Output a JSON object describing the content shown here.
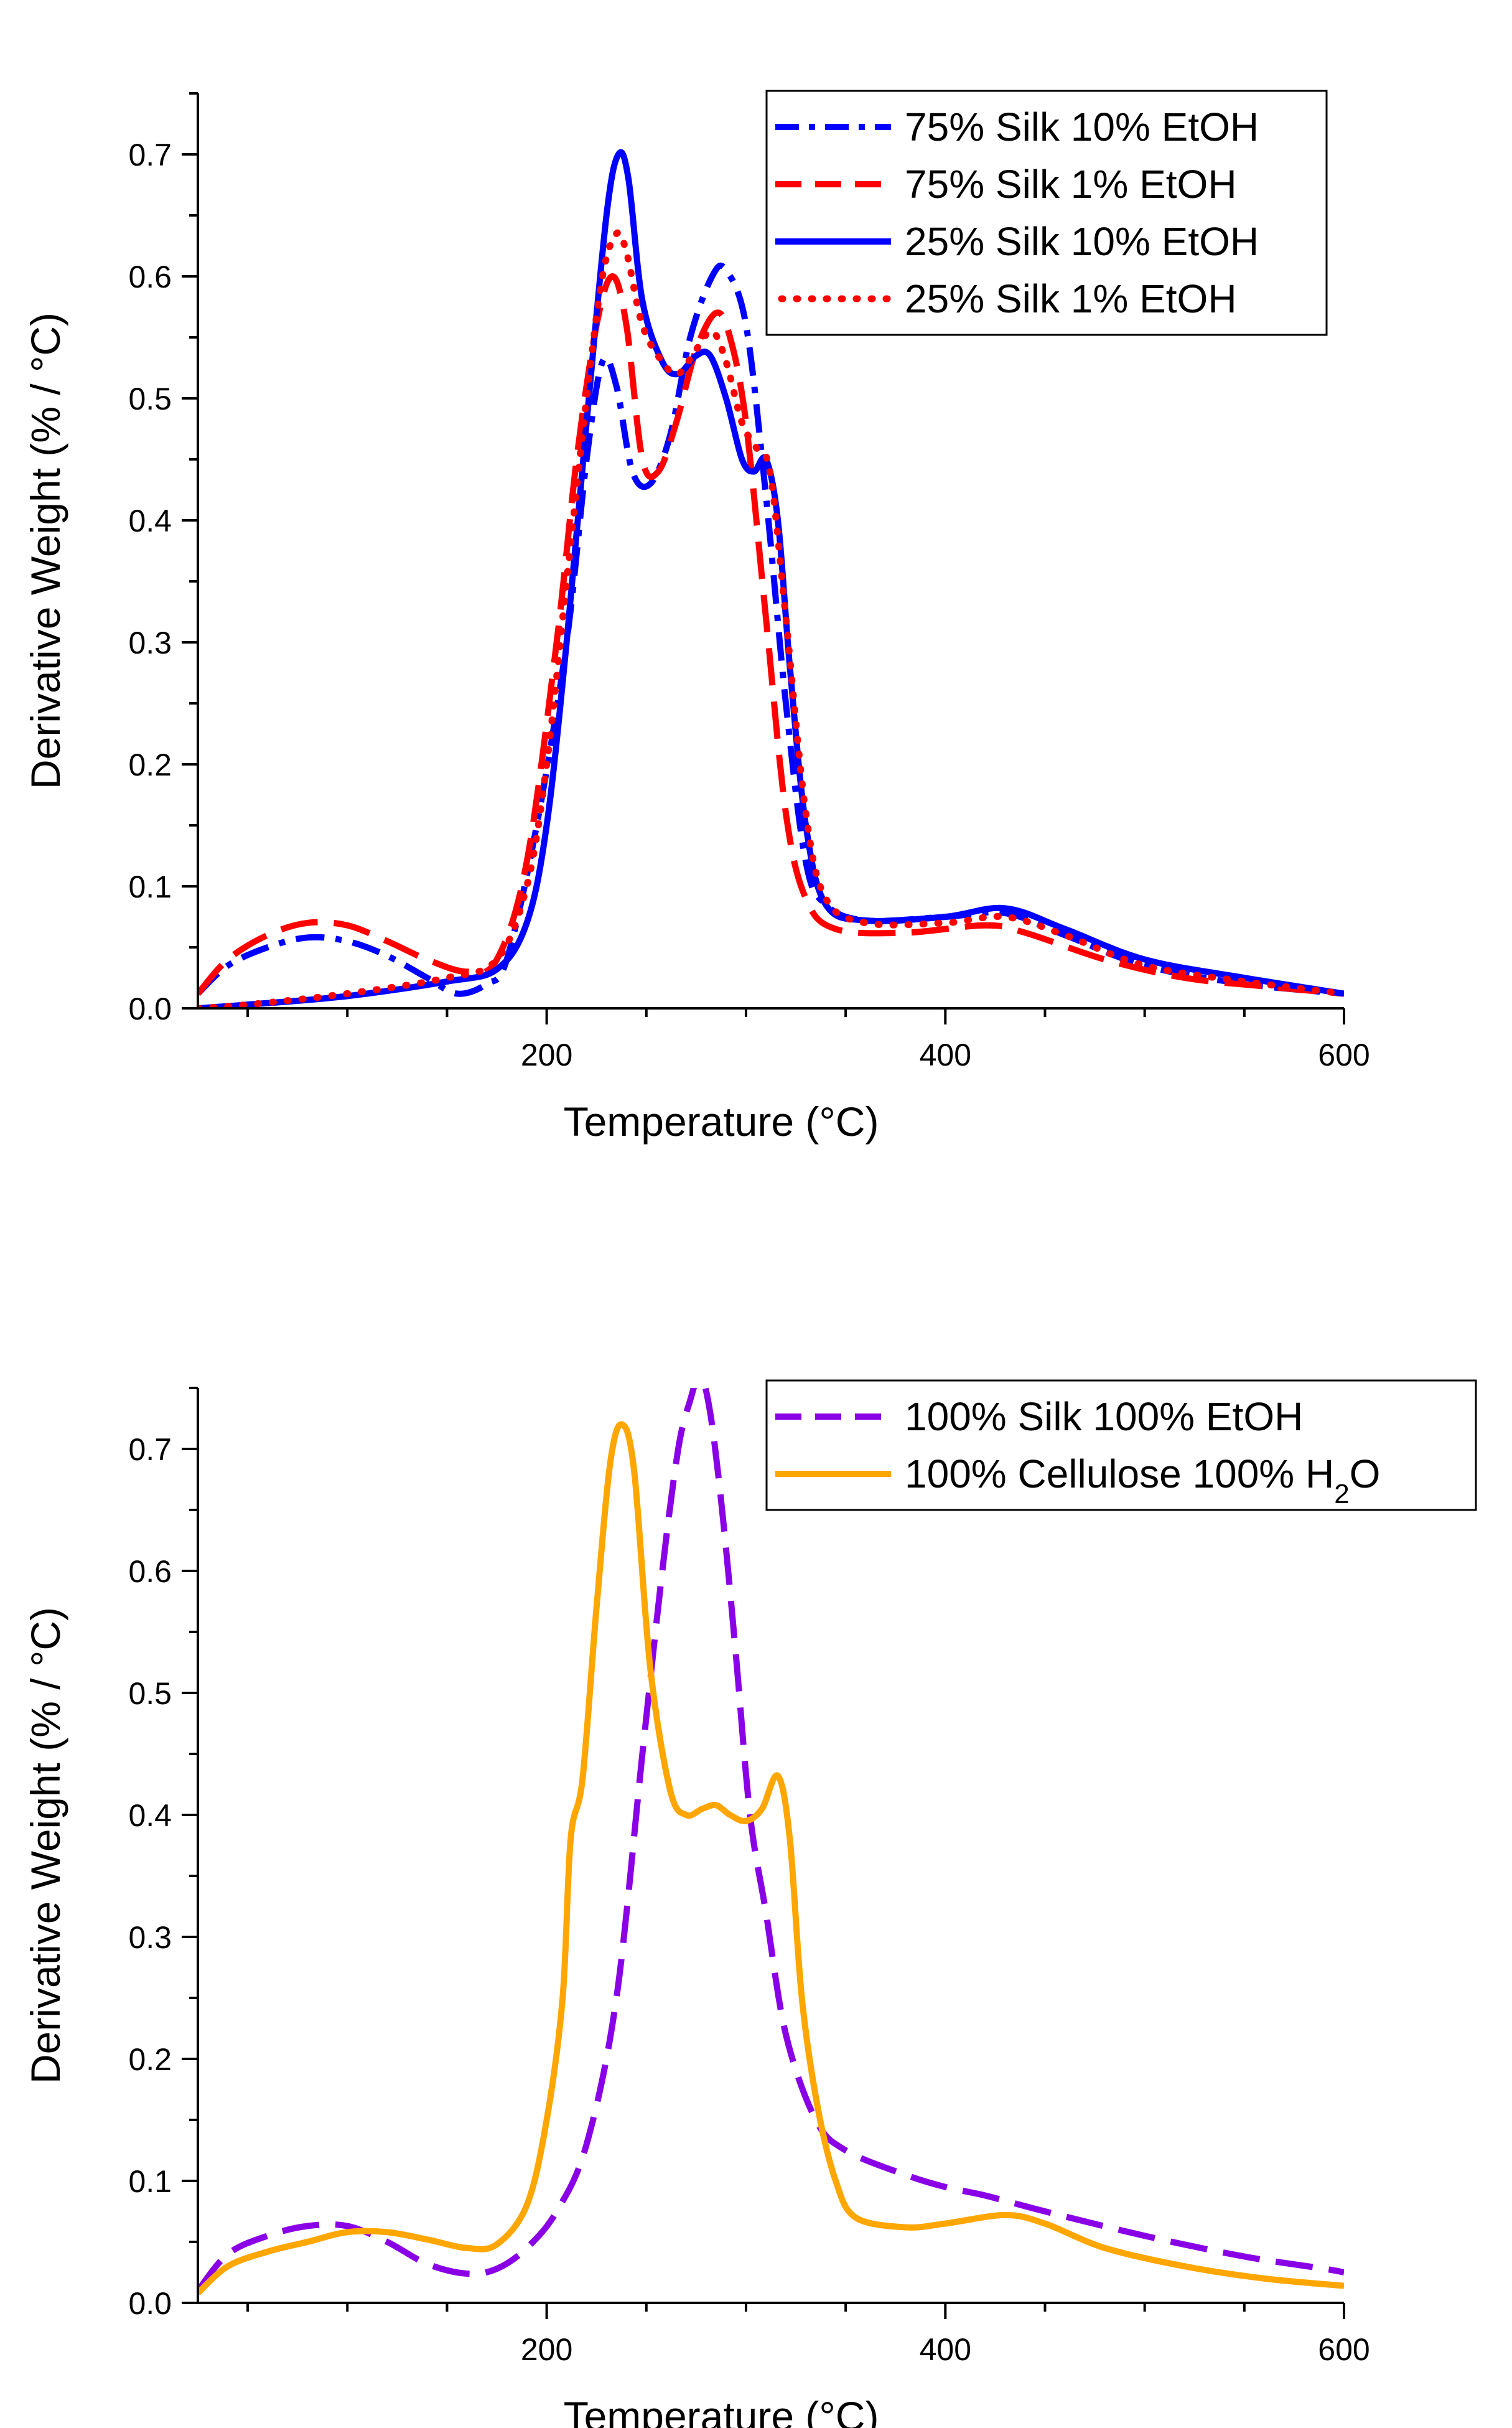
{
  "chart_data": [
    {
      "type": "line",
      "xlabel": "Temperature (°C)",
      "ylabel": "Derivative Weight (% / °C)",
      "xlim": [
        25,
        600
      ],
      "ylim": [
        0,
        0.75
      ],
      "xticks": [
        200,
        400,
        600
      ],
      "yticks": [
        0.0,
        0.1,
        0.2,
        0.3,
        0.4,
        0.5,
        0.6,
        0.7
      ],
      "legend_position": "top-right",
      "series": [
        {
          "name": "75% Silk 10% EtOH",
          "color": "#0000ff",
          "style": "dash-dot",
          "points": [
            [
              25,
              0.012
            ],
            [
              40,
              0.035
            ],
            [
              60,
              0.05
            ],
            [
              80,
              0.058
            ],
            [
              100,
              0.055
            ],
            [
              120,
              0.043
            ],
            [
              140,
              0.025
            ],
            [
              155,
              0.012
            ],
            [
              170,
              0.02
            ],
            [
              180,
              0.04
            ],
            [
              195,
              0.15
            ],
            [
              210,
              0.3
            ],
            [
              220,
              0.45
            ],
            [
              228,
              0.53
            ],
            [
              235,
              0.51
            ],
            [
              243,
              0.44
            ],
            [
              252,
              0.43
            ],
            [
              262,
              0.47
            ],
            [
              272,
              0.55
            ],
            [
              283,
              0.6
            ],
            [
              290,
              0.605
            ],
            [
              300,
              0.56
            ],
            [
              310,
              0.42
            ],
            [
              320,
              0.25
            ],
            [
              330,
              0.12
            ],
            [
              340,
              0.085
            ],
            [
              360,
              0.072
            ],
            [
              400,
              0.075
            ],
            [
              430,
              0.078
            ],
            [
              460,
              0.06
            ],
            [
              500,
              0.035
            ],
            [
              550,
              0.02
            ],
            [
              600,
              0.012
            ]
          ]
        },
        {
          "name": "75% Silk 1% EtOH",
          "color": "#ff0000",
          "style": "dashed",
          "points": [
            [
              25,
              0.012
            ],
            [
              40,
              0.04
            ],
            [
              60,
              0.06
            ],
            [
              80,
              0.07
            ],
            [
              100,
              0.068
            ],
            [
              120,
              0.055
            ],
            [
              140,
              0.04
            ],
            [
              160,
              0.03
            ],
            [
              175,
              0.04
            ],
            [
              190,
              0.12
            ],
            [
              205,
              0.3
            ],
            [
              215,
              0.45
            ],
            [
              225,
              0.56
            ],
            [
              233,
              0.6
            ],
            [
              240,
              0.56
            ],
            [
              248,
              0.45
            ],
            [
              256,
              0.44
            ],
            [
              265,
              0.48
            ],
            [
              275,
              0.54
            ],
            [
              285,
              0.57
            ],
            [
              292,
              0.55
            ],
            [
              300,
              0.48
            ],
            [
              310,
              0.32
            ],
            [
              320,
              0.16
            ],
            [
              330,
              0.09
            ],
            [
              345,
              0.065
            ],
            [
              380,
              0.062
            ],
            [
              420,
              0.068
            ],
            [
              440,
              0.062
            ],
            [
              480,
              0.04
            ],
            [
              520,
              0.025
            ],
            [
              560,
              0.018
            ],
            [
              600,
              0.012
            ]
          ]
        },
        {
          "name": "25% Silk 10% EtOH",
          "color": "#0000ff",
          "style": "solid",
          "points": [
            [
              25,
              0.0
            ],
            [
              50,
              0.003
            ],
            [
              100,
              0.01
            ],
            [
              150,
              0.022
            ],
            [
              175,
              0.032
            ],
            [
              190,
              0.07
            ],
            [
              200,
              0.15
            ],
            [
              210,
              0.3
            ],
            [
              220,
              0.48
            ],
            [
              230,
              0.65
            ],
            [
              236,
              0.7
            ],
            [
              241,
              0.68
            ],
            [
              248,
              0.58
            ],
            [
              258,
              0.53
            ],
            [
              266,
              0.52
            ],
            [
              275,
              0.535
            ],
            [
              282,
              0.535
            ],
            [
              290,
              0.5
            ],
            [
              298,
              0.45
            ],
            [
              304,
              0.44
            ],
            [
              310,
              0.45
            ],
            [
              316,
              0.4
            ],
            [
              322,
              0.28
            ],
            [
              330,
              0.15
            ],
            [
              340,
              0.085
            ],
            [
              360,
              0.072
            ],
            [
              400,
              0.075
            ],
            [
              430,
              0.082
            ],
            [
              460,
              0.065
            ],
            [
              500,
              0.04
            ],
            [
              550,
              0.025
            ],
            [
              600,
              0.012
            ]
          ]
        },
        {
          "name": "25% Silk 1% EtOH",
          "color": "#ff0000",
          "style": "dotted",
          "points": [
            [
              25,
              0.0
            ],
            [
              50,
              0.003
            ],
            [
              100,
              0.012
            ],
            [
              150,
              0.025
            ],
            [
              175,
              0.04
            ],
            [
              190,
              0.1
            ],
            [
              200,
              0.2
            ],
            [
              210,
              0.35
            ],
            [
              220,
              0.5
            ],
            [
              228,
              0.6
            ],
            [
              235,
              0.635
            ],
            [
              240,
              0.62
            ],
            [
              248,
              0.56
            ],
            [
              258,
              0.53
            ],
            [
              266,
              0.52
            ],
            [
              275,
              0.54
            ],
            [
              283,
              0.555
            ],
            [
              290,
              0.53
            ],
            [
              298,
              0.48
            ],
            [
              305,
              0.46
            ],
            [
              312,
              0.44
            ],
            [
              320,
              0.32
            ],
            [
              330,
              0.16
            ],
            [
              340,
              0.09
            ],
            [
              360,
              0.07
            ],
            [
              400,
              0.07
            ],
            [
              430,
              0.075
            ],
            [
              460,
              0.06
            ],
            [
              500,
              0.035
            ],
            [
              550,
              0.022
            ],
            [
              600,
              0.012
            ]
          ]
        }
      ]
    },
    {
      "type": "line",
      "xlabel": "Temperature (°C)",
      "ylabel": "Derivative Weight (% / °C)",
      "xlim": [
        25,
        600
      ],
      "ylim": [
        0,
        0.75
      ],
      "xticks": [
        200,
        400,
        600
      ],
      "yticks": [
        0.0,
        0.1,
        0.2,
        0.3,
        0.4,
        0.5,
        0.6,
        0.7
      ],
      "legend_position": "top-right",
      "series": [
        {
          "name": "100% Silk 100% EtOH",
          "color": "#8a00e6",
          "style": "dashed",
          "points": [
            [
              25,
              0.01
            ],
            [
              40,
              0.04
            ],
            [
              60,
              0.055
            ],
            [
              80,
              0.063
            ],
            [
              100,
              0.063
            ],
            [
              120,
              0.05
            ],
            [
              140,
              0.032
            ],
            [
              160,
              0.024
            ],
            [
              175,
              0.028
            ],
            [
              190,
              0.045
            ],
            [
              205,
              0.075
            ],
            [
              220,
              0.13
            ],
            [
              235,
              0.25
            ],
            [
              248,
              0.45
            ],
            [
              258,
              0.6
            ],
            [
              266,
              0.7
            ],
            [
              272,
              0.74
            ],
            [
              277,
              0.76
            ],
            [
              282,
              0.73
            ],
            [
              288,
              0.65
            ],
            [
              295,
              0.53
            ],
            [
              302,
              0.4
            ],
            [
              310,
              0.32
            ],
            [
              320,
              0.22
            ],
            [
              335,
              0.15
            ],
            [
              350,
              0.125
            ],
            [
              380,
              0.105
            ],
            [
              400,
              0.095
            ],
            [
              420,
              0.088
            ],
            [
              450,
              0.075
            ],
            [
              500,
              0.055
            ],
            [
              550,
              0.038
            ],
            [
              590,
              0.028
            ],
            [
              600,
              0.025
            ]
          ]
        },
        {
          "name": "100% Cellulose 100% H2O",
          "color": "#ffa600",
          "style": "solid",
          "points": [
            [
              25,
              0.008
            ],
            [
              40,
              0.03
            ],
            [
              60,
              0.042
            ],
            [
              80,
              0.05
            ],
            [
              100,
              0.058
            ],
            [
              120,
              0.058
            ],
            [
              140,
              0.052
            ],
            [
              160,
              0.045
            ],
            [
              175,
              0.048
            ],
            [
              190,
              0.08
            ],
            [
              200,
              0.15
            ],
            [
              208,
              0.25
            ],
            [
              212,
              0.38
            ],
            [
              218,
              0.43
            ],
            [
              225,
              0.57
            ],
            [
              232,
              0.69
            ],
            [
              238,
              0.72
            ],
            [
              244,
              0.68
            ],
            [
              252,
              0.52
            ],
            [
              262,
              0.42
            ],
            [
              270,
              0.4
            ],
            [
              278,
              0.405
            ],
            [
              285,
              0.408
            ],
            [
              292,
              0.4
            ],
            [
              300,
              0.395
            ],
            [
              308,
              0.405
            ],
            [
              316,
              0.432
            ],
            [
              322,
              0.38
            ],
            [
              328,
              0.25
            ],
            [
              336,
              0.16
            ],
            [
              345,
              0.1
            ],
            [
              355,
              0.07
            ],
            [
              380,
              0.062
            ],
            [
              400,
              0.065
            ],
            [
              430,
              0.072
            ],
            [
              450,
              0.065
            ],
            [
              480,
              0.045
            ],
            [
              520,
              0.03
            ],
            [
              560,
              0.02
            ],
            [
              600,
              0.014
            ]
          ]
        }
      ]
    }
  ],
  "charts": [
    {
      "legend": [
        {
          "parts": [
            {
              "t": "75% Silk 10% EtOH"
            }
          ]
        },
        {
          "parts": [
            {
              "t": "75% Silk 1% EtOH"
            }
          ]
        },
        {
          "parts": [
            {
              "t": "25% Silk 10% EtOH"
            }
          ]
        },
        {
          "parts": [
            {
              "t": "25% Silk 1% EtOH"
            }
          ]
        }
      ]
    },
    {
      "legend": [
        {
          "parts": [
            {
              "t": "100% Silk 100% EtOH"
            }
          ]
        },
        {
          "parts": [
            {
              "t": "100% Cellulose 100% H"
            },
            {
              "t": "2",
              "sub": true
            },
            {
              "t": "O"
            }
          ]
        }
      ]
    }
  ]
}
